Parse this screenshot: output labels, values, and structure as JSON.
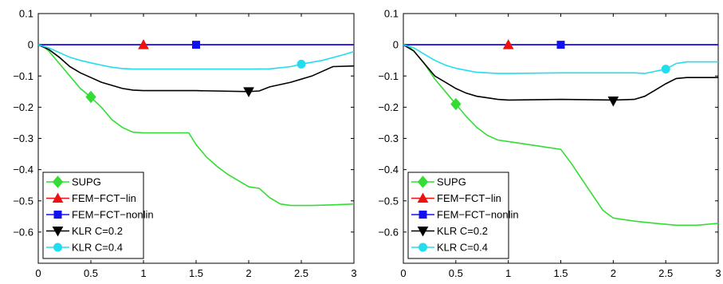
{
  "chart_data": [
    {
      "type": "line",
      "title": "",
      "xlabel": "",
      "ylabel": "",
      "xlim": [
        0,
        3
      ],
      "ylim": [
        -0.7,
        0.1
      ],
      "xticks": [
        "0",
        "0.5",
        "1",
        "1.5",
        "2",
        "2.5",
        "3"
      ],
      "yticks": [
        "0.1",
        "0",
        "-0.1",
        "-0.2",
        "-0.3",
        "-0.4",
        "-0.5",
        "-0.6"
      ],
      "grid": false,
      "legend_position": "bottom-left",
      "series": [
        {
          "name": "SUPG",
          "color": "#33dd33",
          "marker": "diamond",
          "marker_points": [
            [
              0.5,
              -0.167
            ]
          ],
          "points": [
            [
              0,
              0
            ],
            [
              0.05,
              -0.005
            ],
            [
              0.1,
              -0.02
            ],
            [
              0.2,
              -0.06
            ],
            [
              0.3,
              -0.1
            ],
            [
              0.4,
              -0.14
            ],
            [
              0.5,
              -0.168
            ],
            [
              0.6,
              -0.2
            ],
            [
              0.7,
              -0.24
            ],
            [
              0.8,
              -0.265
            ],
            [
              0.9,
              -0.28
            ],
            [
              1.0,
              -0.282
            ],
            [
              1.2,
              -0.282
            ],
            [
              1.43,
              -0.282
            ],
            [
              1.5,
              -0.32
            ],
            [
              1.6,
              -0.36
            ],
            [
              1.7,
              -0.39
            ],
            [
              1.8,
              -0.415
            ],
            [
              1.9,
              -0.435
            ],
            [
              2.0,
              -0.455
            ],
            [
              2.1,
              -0.46
            ],
            [
              2.2,
              -0.49
            ],
            [
              2.3,
              -0.51
            ],
            [
              2.4,
              -0.515
            ],
            [
              2.6,
              -0.515
            ],
            [
              2.8,
              -0.513
            ],
            [
              3.0,
              -0.51
            ]
          ]
        },
        {
          "name": "FEM−FCT−lin",
          "color": "#ee1111",
          "marker": "triangle-up",
          "marker_points": [
            [
              1.0,
              0.0
            ]
          ],
          "points": [
            [
              0,
              0
            ],
            [
              3,
              0
            ]
          ]
        },
        {
          "name": "FEM−FCT−nonlin",
          "color": "#1111ee",
          "marker": "square",
          "marker_points": [
            [
              1.5,
              0.0
            ]
          ],
          "points": [
            [
              0,
              0
            ],
            [
              3,
              0
            ]
          ]
        },
        {
          "name": "KLR C=0.2",
          "color": "#000000",
          "marker": "triangle-down",
          "marker_points": [
            [
              2.0,
              -0.15
            ]
          ],
          "points": [
            [
              0,
              0
            ],
            [
              0.1,
              -0.015
            ],
            [
              0.2,
              -0.04
            ],
            [
              0.3,
              -0.07
            ],
            [
              0.4,
              -0.09
            ],
            [
              0.5,
              -0.105
            ],
            [
              0.6,
              -0.12
            ],
            [
              0.7,
              -0.13
            ],
            [
              0.8,
              -0.14
            ],
            [
              0.9,
              -0.145
            ],
            [
              1.0,
              -0.147
            ],
            [
              1.5,
              -0.147
            ],
            [
              2.0,
              -0.15
            ],
            [
              2.1,
              -0.148
            ],
            [
              2.2,
              -0.135
            ],
            [
              2.4,
              -0.12
            ],
            [
              2.6,
              -0.1
            ],
            [
              2.8,
              -0.07
            ],
            [
              3.0,
              -0.068
            ]
          ]
        },
        {
          "name": "KLR C=0.4",
          "color": "#22ddee",
          "marker": "circle",
          "marker_points": [
            [
              2.5,
              -0.062
            ]
          ],
          "points": [
            [
              0,
              0
            ],
            [
              0.1,
              -0.01
            ],
            [
              0.2,
              -0.025
            ],
            [
              0.3,
              -0.04
            ],
            [
              0.4,
              -0.05
            ],
            [
              0.5,
              -0.058
            ],
            [
              0.6,
              -0.065
            ],
            [
              0.7,
              -0.072
            ],
            [
              0.8,
              -0.076
            ],
            [
              0.9,
              -0.078
            ],
            [
              1.0,
              -0.078
            ],
            [
              1.5,
              -0.078
            ],
            [
              2.0,
              -0.078
            ],
            [
              2.2,
              -0.077
            ],
            [
              2.4,
              -0.07
            ],
            [
              2.5,
              -0.062
            ],
            [
              2.7,
              -0.05
            ],
            [
              2.9,
              -0.032
            ],
            [
              3.0,
              -0.022
            ]
          ]
        }
      ]
    },
    {
      "type": "line",
      "title": "",
      "xlabel": "",
      "ylabel": "",
      "xlim": [
        0,
        3
      ],
      "ylim": [
        -0.7,
        0.1
      ],
      "xticks": [
        "0",
        "0.5",
        "1",
        "1.5",
        "2",
        "2.5",
        "3"
      ],
      "yticks": [
        "0.1",
        "0",
        "-0.1",
        "-0.2",
        "-0.3",
        "-0.4",
        "-0.5",
        "-0.6"
      ],
      "grid": false,
      "legend_position": "bottom-left",
      "series": [
        {
          "name": "SUPG",
          "color": "#33dd33",
          "marker": "diamond",
          "marker_points": [
            [
              0.5,
              -0.19
            ]
          ],
          "points": [
            [
              0,
              0
            ],
            [
              0.05,
              -0.005
            ],
            [
              0.1,
              -0.02
            ],
            [
              0.2,
              -0.06
            ],
            [
              0.3,
              -0.11
            ],
            [
              0.4,
              -0.15
            ],
            [
              0.5,
              -0.19
            ],
            [
              0.6,
              -0.23
            ],
            [
              0.7,
              -0.265
            ],
            [
              0.8,
              -0.29
            ],
            [
              0.9,
              -0.305
            ],
            [
              1.0,
              -0.31
            ],
            [
              1.2,
              -0.32
            ],
            [
              1.3,
              -0.325
            ],
            [
              1.5,
              -0.335
            ],
            [
              1.6,
              -0.38
            ],
            [
              1.7,
              -0.43
            ],
            [
              1.8,
              -0.48
            ],
            [
              1.9,
              -0.53
            ],
            [
              2.0,
              -0.555
            ],
            [
              2.2,
              -0.565
            ],
            [
              2.4,
              -0.572
            ],
            [
              2.6,
              -0.578
            ],
            [
              2.8,
              -0.578
            ],
            [
              3.0,
              -0.572
            ]
          ]
        },
        {
          "name": "FEM−FCT−lin",
          "color": "#ee1111",
          "marker": "triangle-up",
          "marker_points": [
            [
              1.0,
              0.0
            ]
          ],
          "points": [
            [
              0,
              0
            ],
            [
              3,
              0
            ]
          ]
        },
        {
          "name": "FEM−FCT−nonlin",
          "color": "#1111ee",
          "marker": "square",
          "marker_points": [
            [
              1.5,
              0.0
            ]
          ],
          "points": [
            [
              0,
              0
            ],
            [
              3,
              0
            ]
          ]
        },
        {
          "name": "KLR C=0.2",
          "color": "#000000",
          "marker": "triangle-down",
          "marker_points": [
            [
              2.0,
              -0.18
            ]
          ],
          "points": [
            [
              0,
              0
            ],
            [
              0.1,
              -0.02
            ],
            [
              0.2,
              -0.06
            ],
            [
              0.3,
              -0.1
            ],
            [
              0.4,
              -0.12
            ],
            [
              0.5,
              -0.14
            ],
            [
              0.6,
              -0.155
            ],
            [
              0.7,
              -0.165
            ],
            [
              0.8,
              -0.17
            ],
            [
              0.9,
              -0.175
            ],
            [
              1.0,
              -0.177
            ],
            [
              1.5,
              -0.175
            ],
            [
              2.0,
              -0.177
            ],
            [
              2.2,
              -0.175
            ],
            [
              2.3,
              -0.165
            ],
            [
              2.4,
              -0.145
            ],
            [
              2.5,
              -0.125
            ],
            [
              2.6,
              -0.108
            ],
            [
              2.7,
              -0.105
            ],
            [
              3.0,
              -0.105
            ]
          ]
        },
        {
          "name": "KLR C=0.4",
          "color": "#22ddee",
          "marker": "circle",
          "marker_points": [
            [
              2.5,
              -0.078
            ]
          ],
          "points": [
            [
              0,
              0
            ],
            [
              0.1,
              -0.01
            ],
            [
              0.2,
              -0.03
            ],
            [
              0.3,
              -0.05
            ],
            [
              0.4,
              -0.065
            ],
            [
              0.5,
              -0.075
            ],
            [
              0.6,
              -0.082
            ],
            [
              0.7,
              -0.088
            ],
            [
              0.8,
              -0.09
            ],
            [
              0.9,
              -0.092
            ],
            [
              1.0,
              -0.092
            ],
            [
              1.5,
              -0.09
            ],
            [
              2.0,
              -0.09
            ],
            [
              2.2,
              -0.09
            ],
            [
              2.3,
              -0.092
            ],
            [
              2.4,
              -0.085
            ],
            [
              2.5,
              -0.078
            ],
            [
              2.6,
              -0.06
            ],
            [
              2.7,
              -0.055
            ],
            [
              3.0,
              -0.055
            ]
          ]
        }
      ]
    }
  ]
}
